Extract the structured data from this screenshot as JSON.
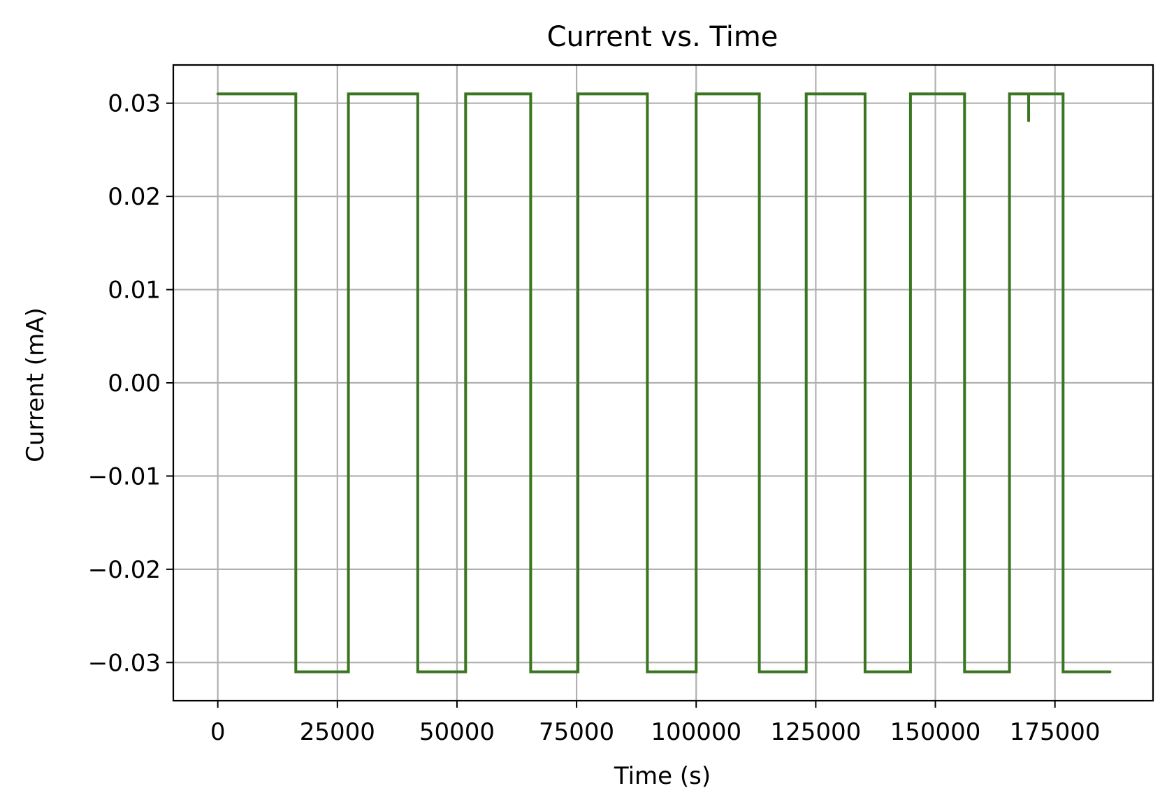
{
  "chart_data": {
    "type": "line",
    "title": "Current vs. Time",
    "xlabel": "Time (s)",
    "ylabel": "Current (mA)",
    "xlim": [
      -9300,
      195500
    ],
    "ylim": [
      -0.0341,
      0.0341
    ],
    "xticks": [
      0,
      25000,
      50000,
      75000,
      100000,
      125000,
      150000,
      175000
    ],
    "xtick_labels": [
      "0",
      "25000",
      "50000",
      "75000",
      "100000",
      "125000",
      "150000",
      "175000"
    ],
    "yticks": [
      0.03,
      0.02,
      0.01,
      0.0,
      -0.01,
      -0.02,
      -0.03
    ],
    "ytick_labels": [
      "0.03",
      "0.02",
      "0.01",
      "0.00",
      "−0.01",
      "−0.02",
      "−0.03"
    ],
    "grid": true,
    "line_color": "#3a7520",
    "series": [
      {
        "x": [
          0,
          16300,
          16300,
          27300,
          27300,
          41800,
          41800,
          51800,
          51800,
          65400,
          65400,
          75300,
          75300,
          89800,
          89800,
          100000,
          100000,
          113200,
          113200,
          123000,
          123000,
          135300,
          135300,
          144800,
          144800,
          156100,
          156100,
          165500,
          165500,
          169500,
          169500,
          169500,
          169500,
          176700,
          176700,
          186500
        ],
        "y": [
          0.031,
          0.031,
          -0.031,
          -0.031,
          0.031,
          0.031,
          -0.031,
          -0.031,
          0.031,
          0.031,
          -0.031,
          -0.031,
          0.031,
          0.031,
          -0.031,
          -0.031,
          0.031,
          0.031,
          -0.031,
          -0.031,
          0.031,
          0.031,
          -0.031,
          -0.031,
          0.031,
          0.031,
          -0.031,
          -0.031,
          0.031,
          0.031,
          0.028,
          0.031,
          0.031,
          0.031,
          -0.031,
          -0.031
        ]
      }
    ]
  }
}
